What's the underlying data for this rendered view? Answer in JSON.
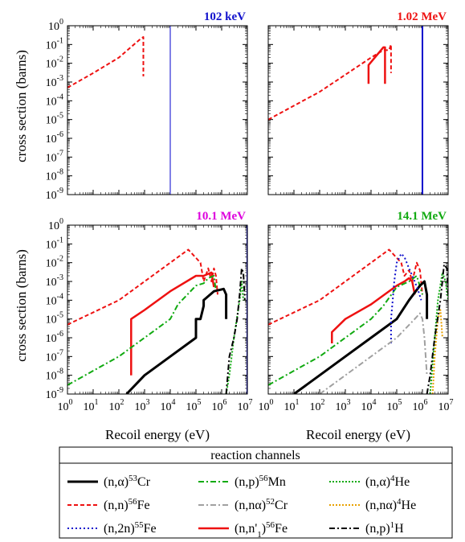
{
  "figure": {
    "ylabel": "cross section (barns)",
    "xlabel": "Recoil energy (eV)",
    "legend_title": "reaction channels"
  },
  "colors": {
    "black": "#000000",
    "red": "#ee1111",
    "blue": "#1111cc",
    "green": "#11aa11",
    "gray": "#a0a0a0",
    "orange": "#e8a000",
    "magenta": "#dd00dd",
    "line": "#0000cc"
  },
  "legend": [
    {
      "key": "na53cr",
      "parts": [
        "(n,α)",
        "53",
        "Cr"
      ],
      "color": "#000000",
      "dash": "",
      "width": 3
    },
    {
      "key": "np56mn",
      "parts": [
        "(n,p)",
        "56",
        "Mn"
      ],
      "color": "#11aa11",
      "dash": "7,3,2,3",
      "width": 2
    },
    {
      "key": "na4he",
      "parts": [
        "(n,α)",
        "4",
        "He"
      ],
      "color": "#11aa11",
      "dash": "2,2",
      "width": 2
    },
    {
      "key": "nn56fe",
      "parts": [
        "(n,n)",
        "56",
        "Fe"
      ],
      "color": "#ee1111",
      "dash": "5,3",
      "width": 2
    },
    {
      "key": "nna52cr",
      "parts": [
        "(n,nα)",
        "52",
        "Cr"
      ],
      "color": "#a0a0a0",
      "dash": "7,3,2,3",
      "width": 2
    },
    {
      "key": "nna4he",
      "parts": [
        "(n,nα)",
        "4",
        "He"
      ],
      "color": "#e8a000",
      "dash": "2,2",
      "width": 2
    },
    {
      "key": "n2n55fe",
      "parts": [
        "(n,2n)",
        "55",
        "Fe"
      ],
      "color": "#1111cc",
      "dash": "2,3",
      "width": 2
    },
    {
      "key": "nn156fe",
      "parts": [
        "(n,n'",
        "1",
        ")",
        "56",
        "Fe"
      ],
      "color": "#ee1111",
      "dash": "",
      "width": 2.5
    },
    {
      "key": "np1h",
      "parts": [
        "(n,p)",
        "1",
        "H"
      ],
      "color": "#000000",
      "dash": "7,3,2,3",
      "width": 2
    }
  ],
  "chart_data": [
    {
      "type": "line",
      "title": "102 keV",
      "title_color": "#1111cc",
      "xscale": "log",
      "yscale": "log",
      "xlim": [
        1,
        10000000
      ],
      "ylim": [
        1e-09,
        1
      ],
      "vline": 10000,
      "series": [
        {
          "key": "nn56fe",
          "x": [
            1,
            10,
            100,
            700,
            900,
            900
          ],
          "y": [
            0.0005,
            0.003,
            0.02,
            0.2,
            0.25,
            0.002
          ]
        }
      ]
    },
    {
      "type": "line",
      "title": "1.02 MeV",
      "title_color": "#ee1111",
      "xscale": "log",
      "yscale": "log",
      "xlim": [
        1,
        10000000
      ],
      "ylim": [
        1e-09,
        1
      ],
      "vline": 1000000,
      "series": [
        {
          "key": "nn56fe",
          "x": [
            1,
            100,
            10000,
            30000,
            50000,
            60000,
            60000
          ],
          "y": [
            1e-05,
            0.0003,
            0.02,
            0.05,
            0.05,
            0.1,
            0.003
          ]
        },
        {
          "key": "nn156fe",
          "x": [
            8000,
            8000,
            30000,
            35000,
            35000
          ],
          "y": [
            0.0008,
            0.008,
            0.07,
            0.07,
            0.0008
          ]
        }
      ]
    },
    {
      "type": "line",
      "title": "10.1 MeV",
      "title_color": "#dd00dd",
      "xscale": "log",
      "yscale": "log",
      "xlim": [
        1,
        10000000
      ],
      "ylim": [
        1e-09,
        1
      ],
      "vline": 10000000,
      "series": [
        {
          "key": "nn56fe",
          "x": [
            1,
            100,
            10000,
            50000,
            150000,
            200000,
            300000,
            400000,
            500000,
            600000,
            700000
          ],
          "y": [
            5e-06,
            0.0001,
            0.01,
            0.05,
            0.01,
            0.001,
            0.005,
            0.001,
            0.005,
            0.002,
            0.0002
          ]
        },
        {
          "key": "nn156fe",
          "x": [
            300,
            300,
            1000,
            10000,
            100000,
            200000,
            400000,
            500000
          ],
          "y": [
            1e-08,
            1e-05,
            3e-05,
            0.0003,
            0.002,
            0.002,
            0.003,
            0.0005
          ]
        },
        {
          "key": "np56mn",
          "x": [
            1,
            100,
            10000,
            20000,
            100000,
            200000,
            300000,
            500000,
            600000
          ],
          "y": [
            3e-09,
            1e-07,
            1e-05,
            6e-05,
            0.0006,
            0.0008,
            0.0015,
            0.002,
            0.0003
          ]
        },
        {
          "key": "na53cr",
          "x": [
            200,
            1000,
            10000,
            100000,
            100000,
            150000,
            200000,
            200000,
            500000,
            1200000,
            1500000,
            1500000
          ],
          "y": [
            1e-09,
            1e-08,
            1e-07,
            1e-06,
            1e-05,
            1e-05,
            5e-05,
            0.0001,
            0.0003,
            0.0004,
            0.0002,
            1e-05
          ]
        },
        {
          "key": "na4he",
          "x": [
            1500000,
            2000000,
            3000000,
            5000000,
            6000000,
            7000000
          ],
          "y": [
            1e-09,
            1e-08,
            1e-06,
            0.0001,
            0.001,
            0.0001
          ]
        },
        {
          "key": "np1h",
          "x": [
            1500000,
            2000000,
            3000000,
            4000000,
            5000000,
            6000000,
            7000000,
            8000000
          ],
          "y": [
            1e-09,
            1e-07,
            1e-06,
            1e-05,
            0.0002,
            0.005,
            0.003,
            0.0001
          ]
        }
      ]
    },
    {
      "type": "line",
      "title": "14.1 MeV",
      "title_color": "#11aa11",
      "xscale": "log",
      "yscale": "log",
      "xlim": [
        1,
        10000000
      ],
      "ylim": [
        1e-09,
        1
      ],
      "vline": 14100000,
      "series": [
        {
          "key": "nn56fe",
          "x": [
            1,
            100,
            10000,
            50000,
            150000,
            200000,
            300000,
            400000,
            600000,
            800000,
            1000000
          ],
          "y": [
            5e-06,
            0.0001,
            0.01,
            0.05,
            0.01,
            0.002,
            0.004,
            0.001,
            0.01,
            0.004,
            0.0002
          ]
        },
        {
          "key": "nn156fe",
          "x": [
            300,
            300,
            1000,
            10000,
            100000,
            200000,
            300000,
            400000,
            500000
          ],
          "y": [
            5e-07,
            2e-06,
            1e-05,
            6e-05,
            0.0006,
            0.001,
            0.0015,
            0.001,
            0.0002
          ]
        },
        {
          "key": "np56mn",
          "x": [
            1,
            100,
            10000,
            30000,
            100000,
            300000,
            600000,
            1000000
          ],
          "y": [
            3e-09,
            1e-07,
            1e-05,
            5e-05,
            0.0005,
            0.001,
            0.002,
            0.0002
          ]
        },
        {
          "key": "na53cr",
          "x": [
            10,
            100,
            1000,
            10000,
            100000,
            300000,
            800000,
            1200000,
            1500000,
            1500000
          ],
          "y": [
            1e-09,
            1e-08,
            1e-07,
            1e-06,
            1e-05,
            0.0001,
            0.0006,
            0.001,
            0.0002,
            1e-05
          ]
        },
        {
          "key": "n2n55fe",
          "x": [
            60000,
            60000,
            70000,
            80000,
            100000,
            150000,
            200000,
            300000,
            500000,
            700000,
            900000
          ],
          "y": [
            5e-07,
            1e-05,
            0.0001,
            0.001,
            0.01,
            0.03,
            0.02,
            0.005,
            0.001,
            0.0003,
            0.0001
          ]
        },
        {
          "key": "nna52cr",
          "x": [
            100,
            1000,
            10000,
            100000,
            500000,
            800000,
            1000000,
            1200000,
            1500000
          ],
          "y": [
            1e-09,
            1e-08,
            1e-07,
            1e-06,
            1e-05,
            2e-05,
            1e-05,
            1e-06,
            1e-08
          ]
        },
        {
          "key": "na4he",
          "x": [
            2000000,
            3000000,
            4000000,
            6000000,
            8000000,
            10000000
          ],
          "y": [
            1e-09,
            1e-06,
            0.0001,
            0.003,
            0.001,
            0.0001
          ]
        },
        {
          "key": "nna4he",
          "x": [
            2500000,
            3000000,
            4000000,
            5000000,
            6000000
          ],
          "y": [
            1e-09,
            1e-07,
            1e-05,
            3e-05,
            1e-06
          ]
        },
        {
          "key": "np1h",
          "x": [
            1500000,
            2000000,
            3000000,
            5000000,
            7000000,
            9000000,
            10000000
          ],
          "y": [
            1e-09,
            1e-08,
            1e-06,
            0.0001,
            0.008,
            0.005,
            0.0002
          ]
        }
      ]
    }
  ]
}
